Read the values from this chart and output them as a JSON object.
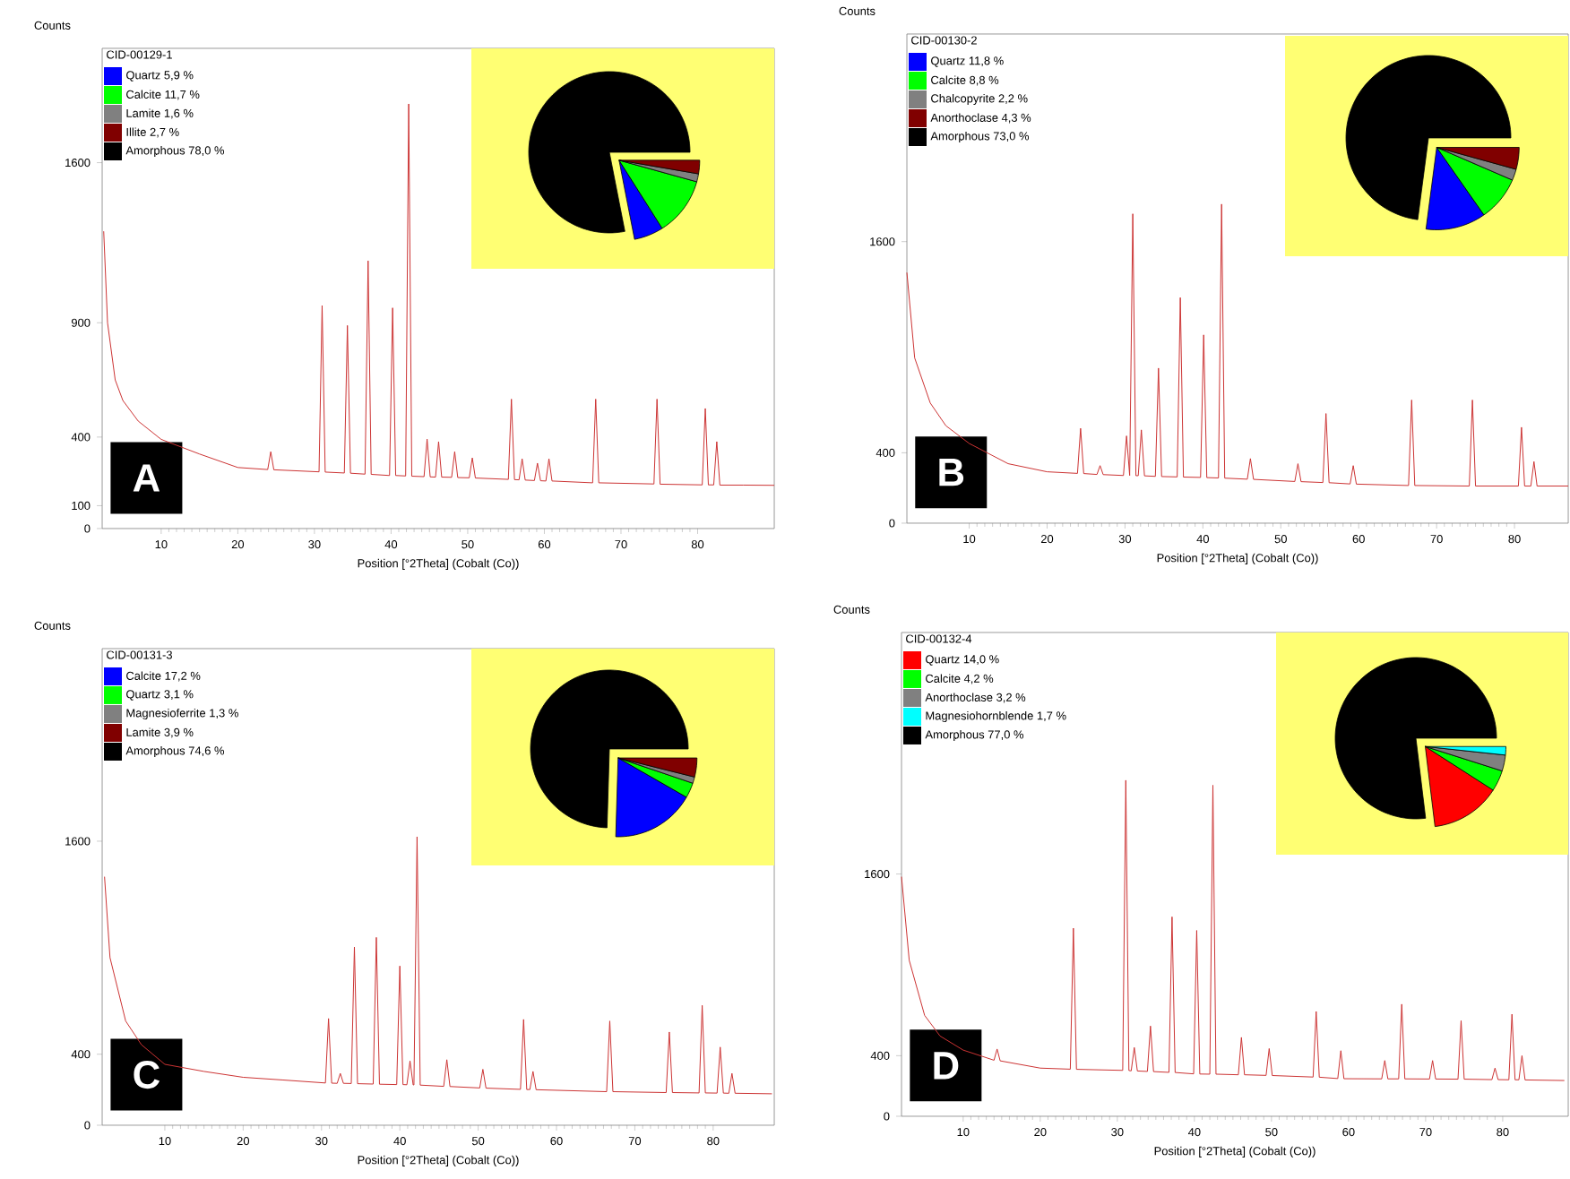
{
  "chart_data": [
    {
      "type": "line",
      "ylabel": "Counts",
      "xlabel": "Position [°2Theta] (Cobalt (Co))",
      "xlim": [
        2.3,
        90
      ],
      "ylim": [
        0,
        2100
      ],
      "xticks": [
        10,
        20,
        30,
        40,
        50,
        60,
        70,
        80
      ],
      "yticks": [
        0,
        100,
        400,
        900,
        1600
      ],
      "annotations": [
        "A"
      ],
      "series": [
        {
          "color": "#cc3333",
          "x": [
            2.5,
            3,
            4,
            5,
            7,
            10,
            15,
            20,
            23.9,
            24.3,
            24.7,
            30.6,
            31.0,
            31.4,
            33.9,
            34.3,
            34.7,
            36.6,
            37.0,
            37.4,
            39.8,
            40.2,
            40.6,
            41.9,
            42.3,
            42.7,
            44.3,
            44.7,
            45.1,
            45.8,
            46.2,
            46.6,
            47.9,
            48.3,
            48.7,
            50.2,
            50.6,
            51.0,
            55.3,
            55.7,
            56.1,
            56.7,
            57.1,
            57.5,
            58.7,
            59.1,
            59.5,
            60.2,
            60.6,
            61.0,
            66.3,
            66.7,
            67.1,
            74.3,
            74.7,
            75.1,
            80.6,
            81.0,
            81.4,
            82.1,
            82.5,
            82.9,
            86,
            90
          ],
          "values": [
            1300,
            900,
            650,
            560,
            470,
            390,
            326,
            267,
            258,
            336,
            257,
            248,
            975,
            247,
            243,
            888,
            242,
            238,
            1171,
            237,
            232,
            965,
            232,
            230,
            1857,
            229,
            227,
            391,
            226,
            225,
            380,
            225,
            224,
            336,
            223,
            222,
            309,
            221,
            215,
            566,
            214,
            213,
            305,
            212,
            210,
            286,
            209,
            208,
            305,
            208,
            200,
            566,
            200,
            195,
            566,
            194,
            191,
            525,
            191,
            191,
            380,
            190,
            190,
            189
          ]
        }
      ]
    },
    {
      "type": "pie",
      "legend": "top left",
      "legend_title": "CID-00129-1",
      "categories": [
        "Quartz 5,9 %",
        "Calcite 11,7 %",
        "Lamite 1,6 %",
        "Illite 2,7 %",
        "Amorphous 78,0 %"
      ],
      "values": [
        5.9,
        11.7,
        1.6,
        2.7,
        78.0
      ],
      "colors": [
        "#0000ff",
        "#00ff00",
        "#808080",
        "#800000",
        "#000000"
      ]
    },
    {
      "type": "line",
      "ylabel": "Counts",
      "xlabel": "Position [°2Theta] (Cobalt (Co))",
      "xlim": [
        2,
        86.9
      ],
      "ylim": [
        0,
        2780
      ],
      "xticks": [
        10,
        20,
        30,
        40,
        50,
        60,
        70,
        80
      ],
      "yticks": [
        0,
        400,
        1600
      ],
      "annotations": [
        "B"
      ],
      "series": [
        {
          "color": "#cc3333",
          "x": [
            2,
            3,
            5,
            7,
            10,
            15,
            20,
            23.9,
            24.3,
            24.7,
            26.4,
            26.8,
            27.2,
            29.8,
            30.2,
            30.6,
            31.0,
            31.4,
            31.7,
            32.1,
            32.5,
            33.9,
            34.3,
            34.7,
            36.7,
            37.1,
            37.5,
            39.7,
            40.1,
            40.5,
            42.0,
            42.4,
            42.8,
            45.7,
            46.1,
            46.5,
            51.8,
            52.2,
            52.6,
            55.4,
            55.8,
            56.2,
            58.9,
            59.3,
            59.7,
            66.4,
            66.8,
            67.2,
            74.2,
            74.6,
            75.0,
            80.5,
            80.9,
            81.3,
            82.1,
            82.5,
            82.9,
            86.9
          ],
          "values": [
            1424,
            939,
            683,
            554,
            453,
            338,
            292,
            283,
            539,
            282,
            277,
            327,
            276,
            271,
            496,
            271,
            1758,
            270,
            270,
            530,
            269,
            266,
            881,
            265,
            263,
            1282,
            262,
            260,
            1070,
            259,
            257,
            1813,
            256,
            250,
            367,
            249,
            237,
            338,
            236,
            231,
            623,
            230,
            223,
            327,
            222,
            214,
            700,
            214,
            211,
            700,
            211,
            211,
            545,
            211,
            211,
            350,
            211,
            211
          ]
        }
      ]
    },
    {
      "type": "pie",
      "legend": "top left",
      "legend_title": "CID-00130-2",
      "categories": [
        "Quartz 11,8 %",
        "Calcite 8,8 %",
        "Chalcopyrite 2,2 %",
        "Anorthoclase 4,3 %",
        "Amorphous 73,0 %"
      ],
      "values": [
        11.8,
        8.8,
        2.2,
        4.3,
        73.0
      ],
      "colors": [
        "#0000ff",
        "#00ff00",
        "#808080",
        "#800000",
        "#000000"
      ]
    },
    {
      "type": "line",
      "ylabel": "Counts",
      "xlabel": "Position [°2Theta] (Cobalt (Co))",
      "xlim": [
        2,
        87.8
      ],
      "ylim": [
        0,
        2685
      ],
      "xticks": [
        10,
        20,
        30,
        40,
        50,
        60,
        70,
        80
      ],
      "yticks": [
        0,
        400,
        1600
      ],
      "annotations": [
        "C"
      ],
      "series": [
        {
          "color": "#cc3333",
          "x": [
            2.3,
            3,
            5,
            7,
            10,
            15,
            20,
            25,
            30.5,
            30.9,
            31.3,
            32.0,
            32.4,
            32.8,
            33.8,
            34.2,
            34.6,
            36.6,
            37.0,
            37.4,
            39.6,
            40.0,
            40.4,
            40.9,
            41.3,
            41.7,
            41.8,
            42.2,
            42.6,
            45.6,
            46.0,
            46.4,
            50.2,
            50.6,
            51.0,
            55.4,
            55.8,
            56.2,
            56.6,
            57.0,
            57.4,
            66.4,
            66.8,
            67.2,
            74.0,
            74.4,
            74.8,
            78.2,
            78.6,
            79.0,
            80.5,
            80.9,
            81.3,
            82.0,
            82.4,
            82.8,
            87.5
          ],
          "values": [
            1400,
            944,
            587,
            454,
            343,
            303,
            270,
            255,
            238,
            601,
            237,
            236,
            292,
            236,
            235,
            1004,
            234,
            232,
            1058,
            231,
            229,
            897,
            229,
            228,
            362,
            227,
            227,
            1625,
            226,
            219,
            369,
            218,
            210,
            315,
            209,
            202,
            596,
            201,
            201,
            303,
            200,
            189,
            587,
            189,
            184,
            525,
            184,
            182,
            675,
            182,
            181,
            440,
            181,
            180,
            292,
            180,
            177
          ]
        }
      ]
    },
    {
      "type": "pie",
      "legend": "top left",
      "legend_title": "CID-00131-3",
      "categories": [
        "Calcite 17,2 %",
        "Quartz 3,1 %",
        "Magnesioferrite 1,3 %",
        "Lamite 3,9 %",
        "Amorphous 74,6 %"
      ],
      "values": [
        17.2,
        3.1,
        1.3,
        3.9,
        74.6
      ],
      "colors": [
        "#0000ff",
        "#00ff00",
        "#808080",
        "#800000",
        "#000000"
      ]
    },
    {
      "type": "line",
      "ylabel": "Counts",
      "xlabel": "Position [°2Theta] (Cobalt (Co))",
      "xlim": [
        2,
        88.5
      ],
      "ylim": [
        0,
        3195
      ],
      "xticks": [
        10,
        20,
        30,
        40,
        50,
        60,
        70,
        80
      ],
      "yticks": [
        0,
        400,
        1600
      ],
      "annotations": [
        "D"
      ],
      "series": [
        {
          "color": "#cc3333",
          "x": [
            2,
            3,
            5,
            7,
            10,
            14.0,
            14.4,
            14.8,
            20,
            23.9,
            24.3,
            24.7,
            30.7,
            31.1,
            31.5,
            31.8,
            32.2,
            32.6,
            33.9,
            34.3,
            34.7,
            36.7,
            37.1,
            37.5,
            39.9,
            40.3,
            40.7,
            42.0,
            42.4,
            42.8,
            45.7,
            46.1,
            46.5,
            49.3,
            49.7,
            50.1,
            55.4,
            55.8,
            56.2,
            58.6,
            59.0,
            59.4,
            64.3,
            64.7,
            65.1,
            66.5,
            66.9,
            67.3,
            70.5,
            70.9,
            71.3,
            74.2,
            74.6,
            75.0,
            78.6,
            79.0,
            79.4,
            80.8,
            81.2,
            81.6,
            82.1,
            82.5,
            82.9,
            88
          ],
          "values": [
            1582,
            1030,
            666,
            530,
            437,
            370,
            444,
            366,
            318,
            311,
            1242,
            310,
            303,
            2219,
            302,
            300,
            454,
            299,
            296,
            596,
            295,
            290,
            1317,
            289,
            280,
            1227,
            279,
            278,
            2186,
            278,
            274,
            521,
            274,
            270,
            447,
            269,
            259,
            692,
            258,
            249,
            433,
            248,
            247,
            368,
            247,
            247,
            740,
            247,
            246,
            368,
            246,
            245,
            631,
            245,
            242,
            318,
            242,
            241,
            674,
            241,
            241,
            400,
            240,
            236
          ]
        }
      ]
    },
    {
      "type": "pie",
      "legend": "top left",
      "legend_title": "CID-00132-4",
      "categories": [
        "Quartz 14,0 %",
        "Calcite 4,2 %",
        "Anorthoclase 3,2 %",
        "Magnesiohornblende 1,7 %",
        "Amorphous 77,0 %"
      ],
      "values": [
        14.0,
        4.2,
        3.2,
        1.7,
        77.0
      ],
      "colors": [
        "#ff0000",
        "#00ff00",
        "#808080",
        "#00ffff",
        "#000000"
      ]
    }
  ]
}
